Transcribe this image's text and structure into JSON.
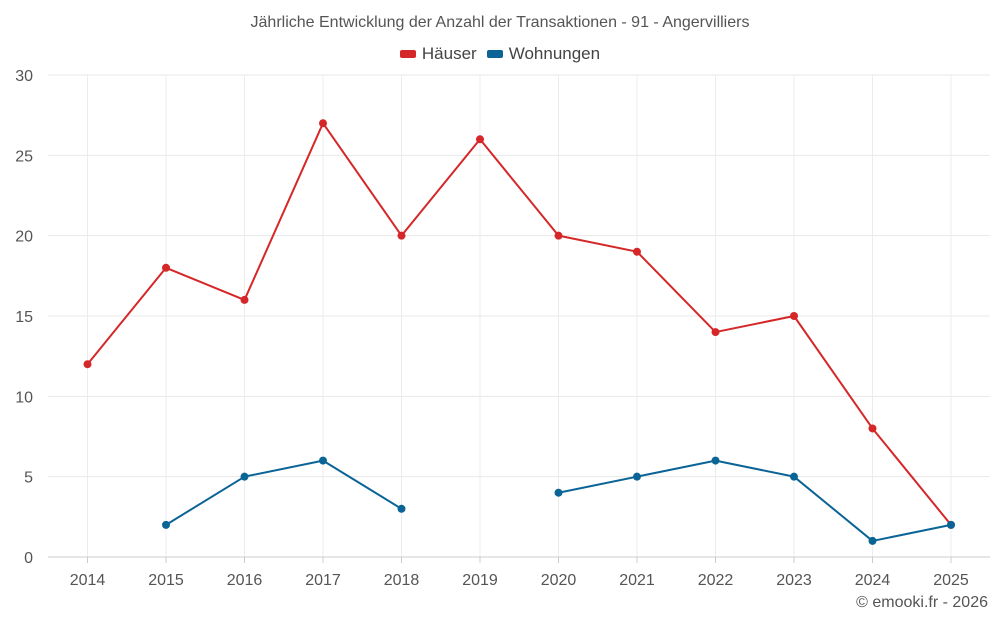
{
  "chart_data": {
    "type": "line",
    "title": "Jährliche Entwicklung der Anzahl der Transaktionen - 91 - Angervilliers",
    "categories": [
      "2014",
      "2015",
      "2016",
      "2017",
      "2018",
      "2019",
      "2020",
      "2021",
      "2022",
      "2023",
      "2024",
      "2025"
    ],
    "ylim": [
      0,
      30
    ],
    "yticks": [
      0,
      5,
      10,
      15,
      20,
      25,
      30
    ],
    "grid": true,
    "legend_position": "top-center",
    "series": [
      {
        "name": "Häuser",
        "color": "#d62728",
        "values": [
          12,
          18,
          16,
          27,
          20,
          26,
          20,
          19,
          14,
          15,
          8,
          2
        ]
      },
      {
        "name": "Wohnungen",
        "color": "#0b6496",
        "values": [
          null,
          2,
          5,
          6,
          3,
          null,
          4,
          5,
          6,
          5,
          1,
          2
        ]
      }
    ]
  },
  "credit": "© emooki.fr - 2026"
}
